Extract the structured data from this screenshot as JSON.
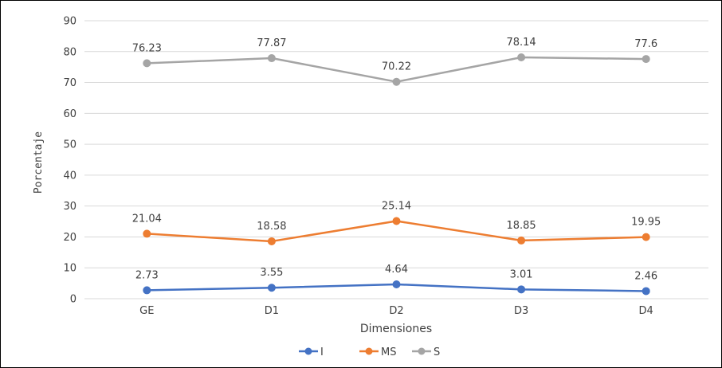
{
  "chart_data": {
    "type": "line",
    "categories": [
      "GE",
      "D1",
      "D2",
      "D3",
      "D4"
    ],
    "series": [
      {
        "name": "I",
        "color": "#4472C4",
        "values": [
          2.73,
          3.55,
          4.64,
          3.01,
          2.46
        ],
        "labels": [
          "2.73",
          "3.55",
          "4.64",
          "3.01",
          "2.46"
        ]
      },
      {
        "name": "MS",
        "color": "#ED7D31",
        "values": [
          21.04,
          18.58,
          25.14,
          18.85,
          19.95
        ],
        "labels": [
          "21.04",
          "18.58",
          "25.14",
          "18.85",
          "19.95"
        ]
      },
      {
        "name": "S",
        "color": "#A5A5A5",
        "values": [
          76.23,
          77.87,
          70.22,
          78.14,
          77.6
        ],
        "labels": [
          "76.23",
          "77.87",
          "70.22",
          "78.14",
          "77.6"
        ]
      }
    ],
    "xlabel": "Dimensiones",
    "ylabel": "Porcentaje",
    "ylim": [
      0,
      90
    ],
    "yticks": [
      "0",
      "10",
      "20",
      "30",
      "40",
      "50",
      "60",
      "70",
      "80",
      "90"
    ],
    "grid": true,
    "legend": "bottom-center"
  }
}
